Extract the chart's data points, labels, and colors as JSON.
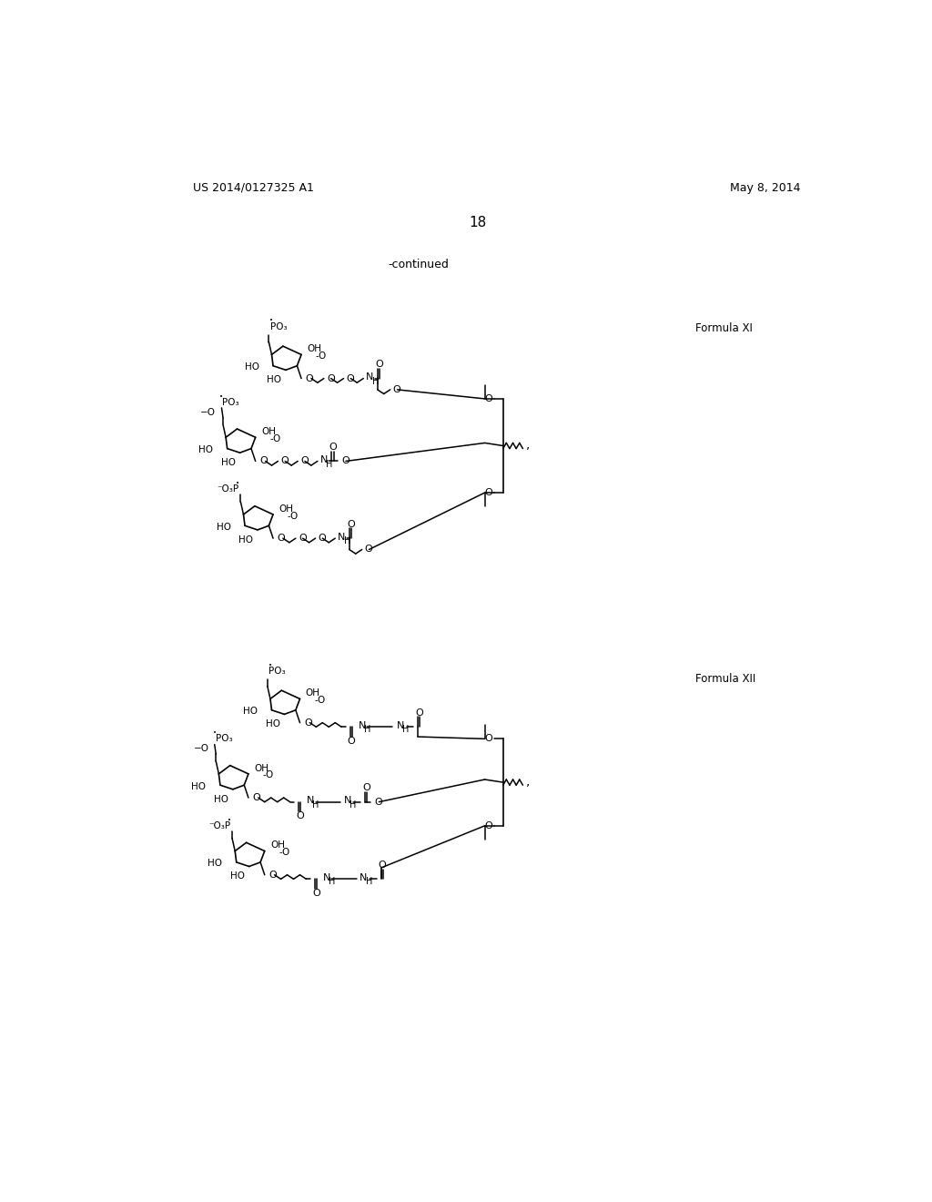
{
  "background_color": "#ffffff",
  "header_left": "US 2014/0127325 A1",
  "header_right": "May 8, 2014",
  "page_number": "18",
  "continued_text": "-continued",
  "formula_xi_label": "Formula XI",
  "formula_xii_label": "Formula XII",
  "font_color": "#000000",
  "line_color": "#000000",
  "fig_width": 10.24,
  "fig_height": 13.2,
  "dpi": 100
}
